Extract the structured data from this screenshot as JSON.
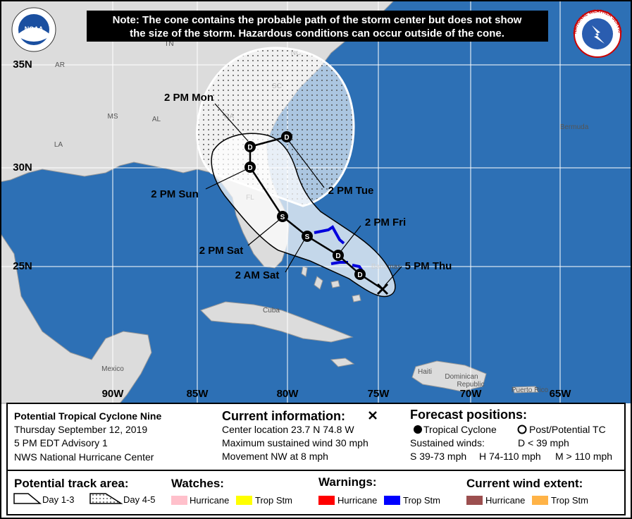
{
  "note": {
    "line1": "Note: The cone contains the probable path of the storm center but does not show",
    "line2": "the size of the storm. Hazardous conditions can occur outside of the cone."
  },
  "logos": {
    "noaa": "NOAA",
    "nws": "NATIONAL WEATHER SERVICE"
  },
  "map": {
    "latitudes": [
      "35N",
      "30N",
      "25N"
    ],
    "longitudes": [
      "90W",
      "85W",
      "80W",
      "75W",
      "70W",
      "65W"
    ],
    "places": [
      "AR",
      "TN",
      "NC",
      "MS",
      "AL",
      "GA",
      "SC",
      "LA",
      "FL",
      "Bermuda",
      "Bahamas",
      "Cuba",
      "Mexico",
      "Haiti",
      "Dominican",
      "Republic",
      "Puerto Rico"
    ]
  },
  "track": {
    "times": [
      "2 PM Mon",
      "2 PM Tue",
      "2 PM Sun",
      "2 PM Fri",
      "2 PM Sat",
      "2 AM Sat",
      "5 PM Thu"
    ],
    "points": [
      "D",
      "D",
      "S",
      "S",
      "D",
      "D",
      "D"
    ]
  },
  "panel": {
    "storm": {
      "name": "Potential Tropical Cyclone Nine",
      "date": "Thursday September 12, 2019",
      "advisory": "5 PM EDT Advisory 1",
      "center": "NWS National Hurricane Center"
    },
    "current": {
      "heading": "Current information:",
      "location": "Center location 23.7 N 74.8 W",
      "wind": "Maximum sustained wind 30 mph",
      "movement": "Movement NW at 8 mph"
    },
    "forecast": {
      "heading": "Forecast positions:",
      "tropical": "Tropical Cyclone",
      "post": "Post/Potential TC",
      "winds": "Sustained winds:",
      "d": "D < 39 mph",
      "s": "S 39-73 mph",
      "h": "H 74-110 mph",
      "m": "M > 110 mph"
    },
    "track_area": {
      "heading": "Potential track area:",
      "day13": "Day 1-3",
      "day45": "Day 4-5"
    },
    "watches": {
      "heading": "Watches:",
      "hurricane": "Hurricane",
      "storm": "Trop Stm"
    },
    "warnings": {
      "heading": "Warnings:",
      "hurricane": "Hurricane",
      "storm": "Trop Stm"
    },
    "wind": {
      "heading": "Current wind extent:",
      "hurricane": "Hurricane",
      "storm": "Trop Stm"
    }
  }
}
